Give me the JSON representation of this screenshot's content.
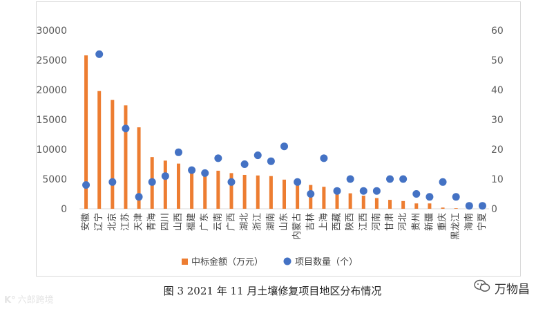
{
  "chart_data": {
    "type": "bar",
    "categories": [
      "安徽",
      "辽宁",
      "北京",
      "江苏",
      "天津",
      "青海",
      "四川",
      "山西",
      "福建",
      "广东",
      "云南",
      "广西",
      "湖北",
      "浙江",
      "湖南",
      "山东",
      "内蒙古",
      "吉林",
      "上海",
      "西藏",
      "陕西",
      "江西",
      "河南",
      "甘肃",
      "河北",
      "贵州",
      "新疆",
      "重庆",
      "黑龙江",
      "海南",
      "宁夏"
    ],
    "series": [
      {
        "name": "中标金额（万元）",
        "type": "bar",
        "axis": "left",
        "color": "#ED7D31",
        "values": [
          25800,
          19800,
          18300,
          17400,
          13700,
          8700,
          8100,
          7600,
          6700,
          6500,
          6400,
          6000,
          5700,
          5600,
          5500,
          4900,
          4400,
          4000,
          3700,
          3000,
          2600,
          2200,
          1800,
          1500,
          1300,
          900,
          900,
          200,
          100,
          50,
          30
        ]
      },
      {
        "name": "项目数量（个）",
        "type": "scatter",
        "axis": "right",
        "color": "#4472C4",
        "values": [
          8,
          52,
          9,
          27,
          4,
          9,
          11,
          19,
          13,
          12,
          17,
          9,
          15,
          18,
          16,
          21,
          9,
          5,
          17,
          6,
          10,
          6,
          6,
          10,
          10,
          5,
          4,
          9,
          4,
          1,
          1
        ]
      }
    ],
    "y_left": {
      "min": 0,
      "max": 30000,
      "ticks": [
        "0",
        "5000",
        "10000",
        "15000",
        "20000",
        "25000",
        "30000"
      ]
    },
    "y_right": {
      "min": 0,
      "max": 60,
      "ticks": [
        "0",
        "10",
        "20",
        "30",
        "40",
        "50",
        "60"
      ]
    },
    "grid": false,
    "legend": "bottom"
  },
  "caption": "图 3 2021 年 11 月土壤修复项目地区分布情况",
  "watermarks": {
    "left": "六郎跨境",
    "right": "万物昌"
  }
}
